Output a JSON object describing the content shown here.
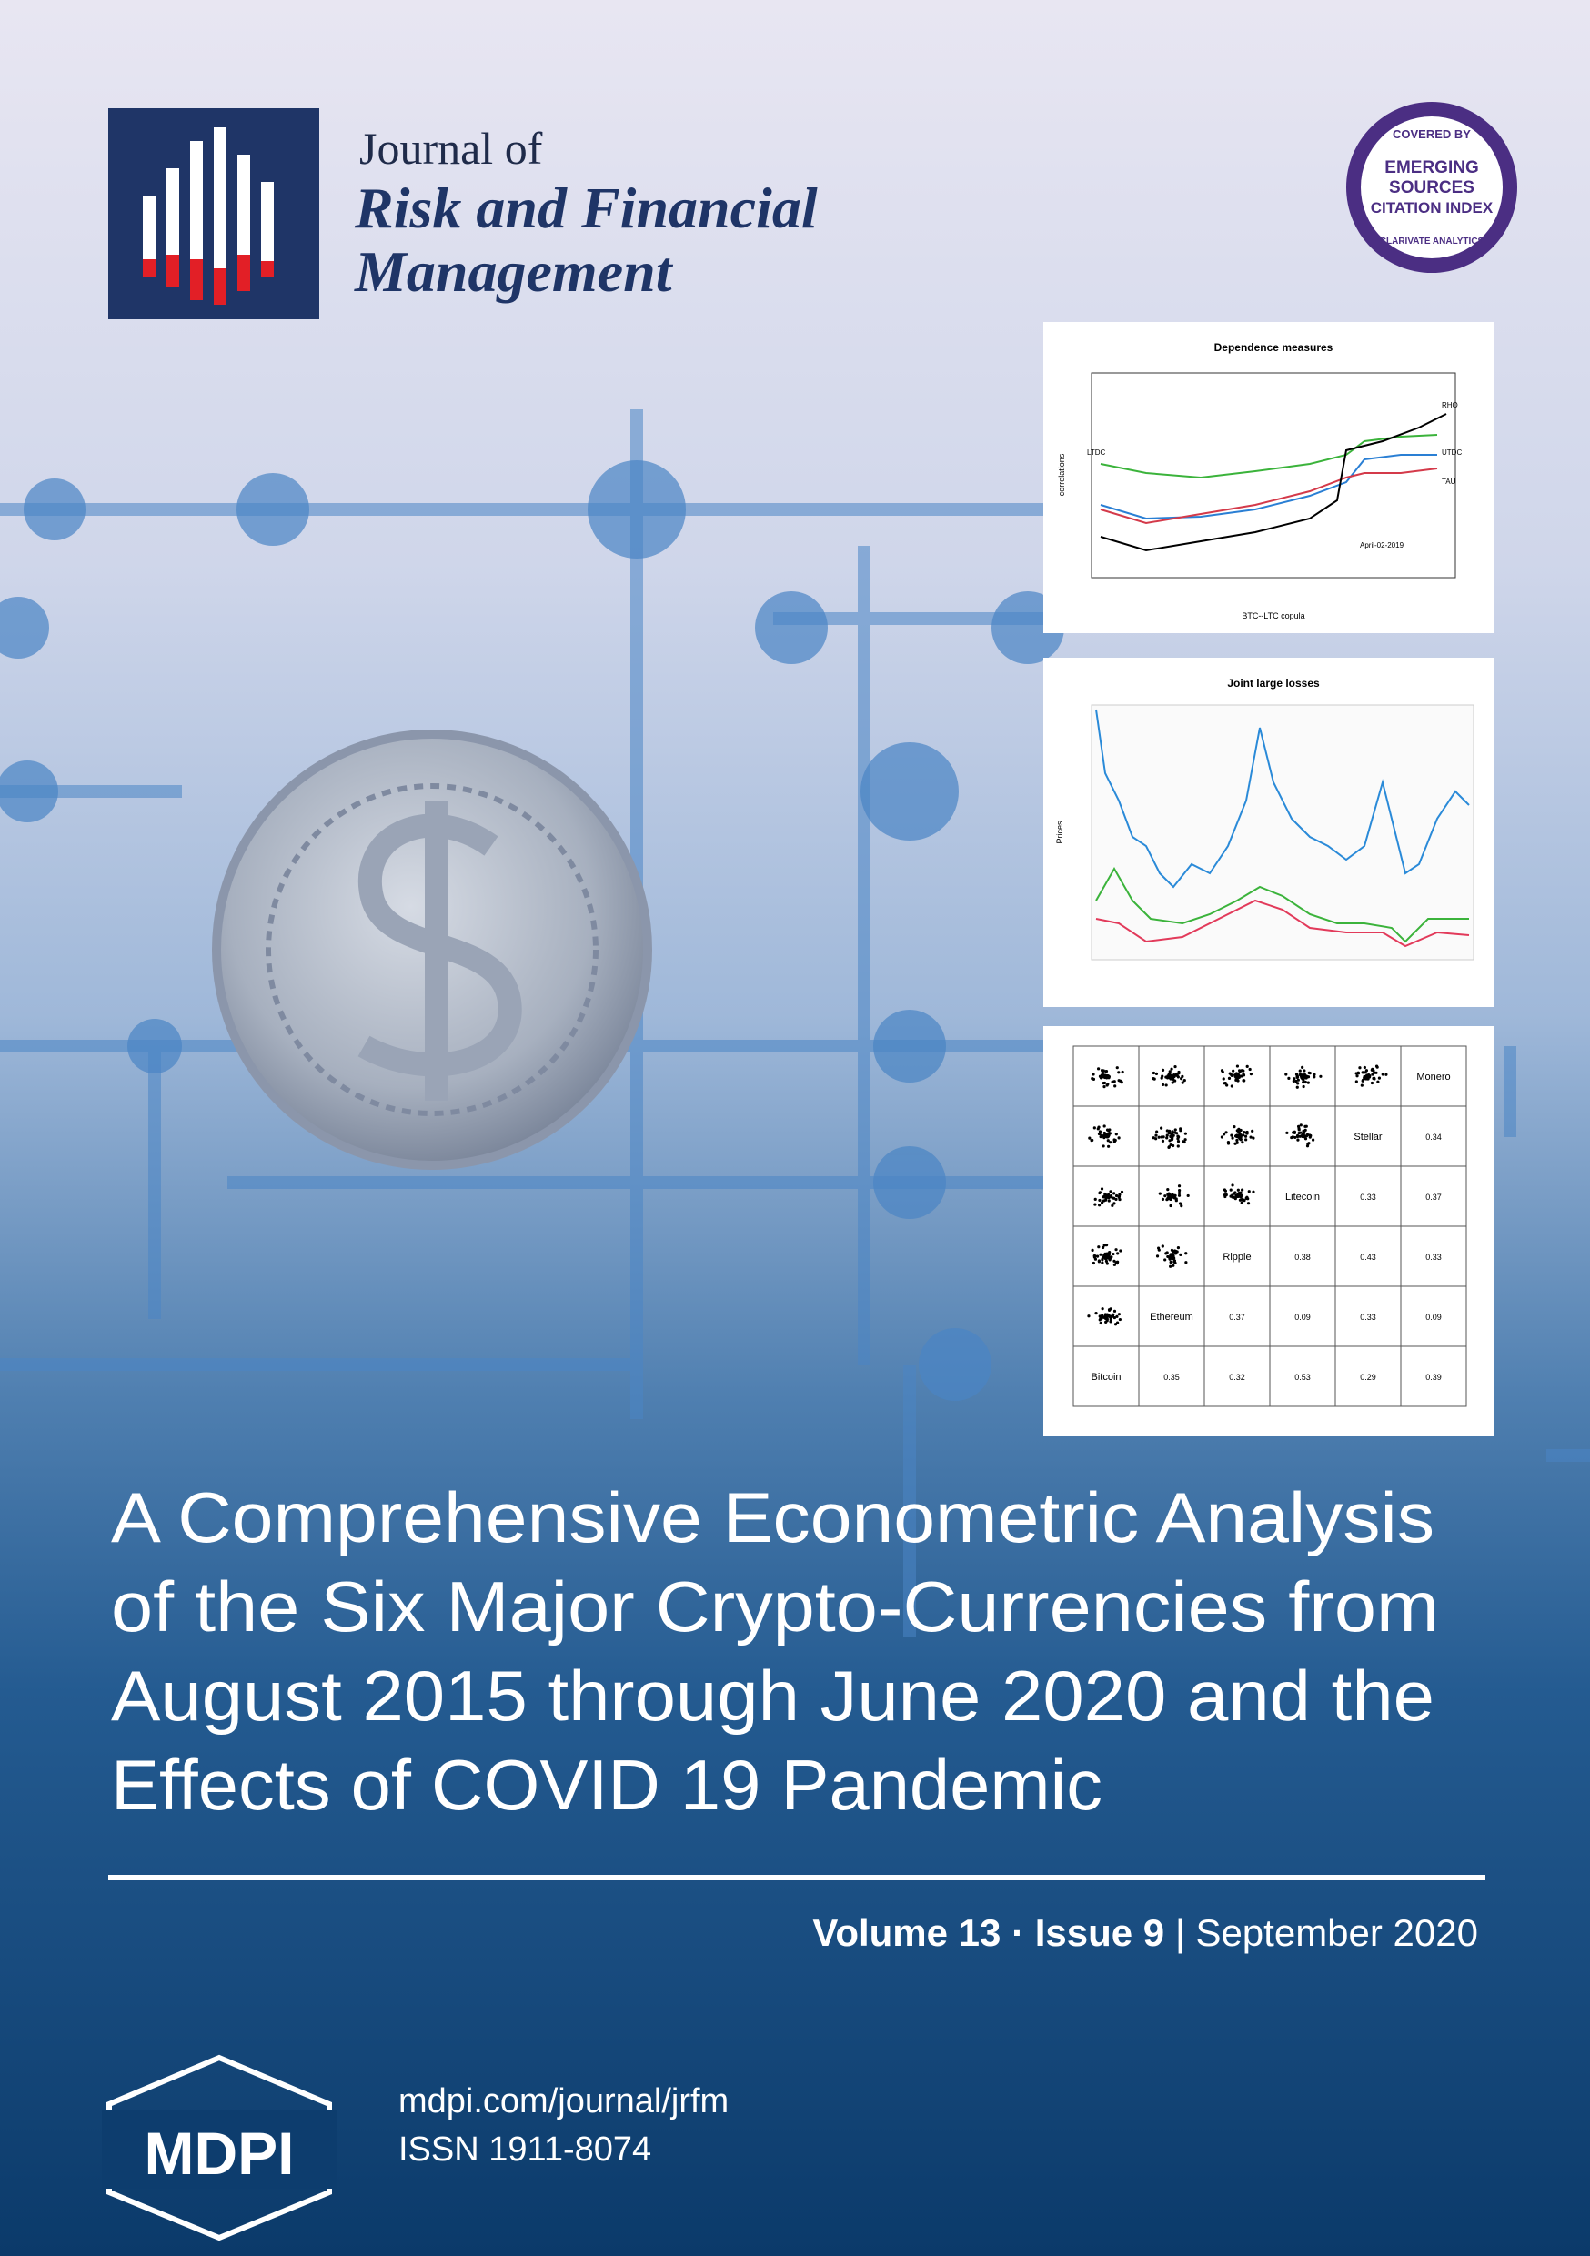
{
  "journal": {
    "line1": "Journal of",
    "line2": "Risk and Financial",
    "line3": "Management"
  },
  "badge": {
    "top": "COVERED BY",
    "line1": "EMERGING",
    "line2": "SOURCES",
    "line3": "CITATION INDEX",
    "bottom": "CLARIVATE ANALYTICS"
  },
  "figures": {
    "dependence": {
      "title": "Dependence measures",
      "xlabel": "BTC--LTC copula",
      "ylabel": "correlations",
      "labels": [
        "RHO",
        "LTDC",
        "UTDC",
        "TAU"
      ],
      "annotation": "April-02-2019"
    },
    "losses": {
      "title": "Joint large losses",
      "ylabel": "Prices"
    },
    "pairs": {
      "names": [
        "Monero",
        "Stellar",
        "Litecoin",
        "Ripple",
        "Ethereum",
        "Bitcoin"
      ],
      "correlations": [
        [],
        [
          "0.34"
        ],
        [
          "0.33",
          "0.37"
        ],
        [
          "0.38",
          "0.43",
          "0.33"
        ],
        [
          "0.37",
          "0.09",
          "0.33",
          "0.09"
        ],
        [
          "0.35",
          "0.32",
          "0.53",
          "0.29",
          "0.39"
        ]
      ]
    }
  },
  "title": [
    "A Comprehensive Econometric Analysis",
    "of the Six Major Crypto-Currencies from",
    "August 2015 through June 2020 and the",
    "Effects of COVID 19 Pandemic"
  ],
  "issue": {
    "volume": "Volume 13",
    "sep1": "·",
    "issue": "Issue 9",
    "sep2": "|",
    "date": "September 2020"
  },
  "publisher": {
    "logo": "MDPI",
    "url": "mdpi.com/journal/jrfm",
    "issn": "ISSN 1911-8074"
  }
}
